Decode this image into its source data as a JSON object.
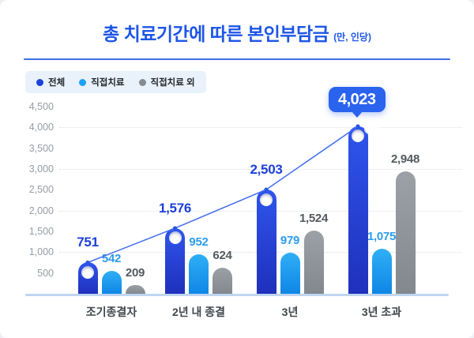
{
  "header": {
    "title": "총 치료기간에 따른 본인부담금",
    "unit": "(만, 인당)",
    "title_color": "#1D55E6"
  },
  "legend": {
    "position": "top-left",
    "items": [
      {
        "key": "total",
        "label": "전체",
        "color": "#1D43DC"
      },
      {
        "key": "direct-treatment",
        "label": "직접치료",
        "color": "#1FA3F2"
      },
      {
        "key": "non-direct-treatment",
        "label": "직접치료 외",
        "color": "#848B92"
      }
    ]
  },
  "chart_data": {
    "type": "bar",
    "subtype": "grouped-bars-with-trend-line-on-first-series",
    "title": "총 치료기간에 따른 본인부담금",
    "unit_note": "(만, 인당)",
    "categories": [
      "조기종결자",
      "2년 내 종결",
      "3년",
      "3년 초과"
    ],
    "series": [
      {
        "key": "total",
        "name": "전체",
        "values": [
          751,
          1576,
          2503,
          4023
        ],
        "color_top": "#2F55EC",
        "color_bottom": "#1F30BC",
        "label_color": "#1C3FD8",
        "has_line": true,
        "has_marker": true
      },
      {
        "key": "direct-treatment",
        "name": "직접치료",
        "values": [
          542,
          952,
          979,
          1075
        ],
        "color_top": "#2FAFF6",
        "color_bottom": "#0F86E6",
        "label_color": "#2D9CEC",
        "has_line": false,
        "has_marker": false
      },
      {
        "key": "non-direct-treatment",
        "name": "직접치료 외",
        "values": [
          209,
          624,
          1524,
          2948
        ],
        "color_top": "#9BA1A6",
        "color_bottom": "#82888E",
        "label_color": "#53585E",
        "has_line": false,
        "has_marker": false
      }
    ],
    "ylim": [
      0,
      4500
    ],
    "y_ticks": [
      500,
      1000,
      1500,
      2000,
      2500,
      3000,
      3500,
      4000,
      4500
    ],
    "grid_values": [
      1000,
      2000,
      3000,
      4000
    ],
    "grid_style": "dotted-horizontal",
    "line_color": "#3E6BEE",
    "vertex_dot_color": "#2B55E2",
    "callout": {
      "series": "전체",
      "category": "3년 초과",
      "value": 4023,
      "label": "4,023",
      "color": "#2A63EE"
    },
    "xlabel": "",
    "ylabel": ""
  }
}
